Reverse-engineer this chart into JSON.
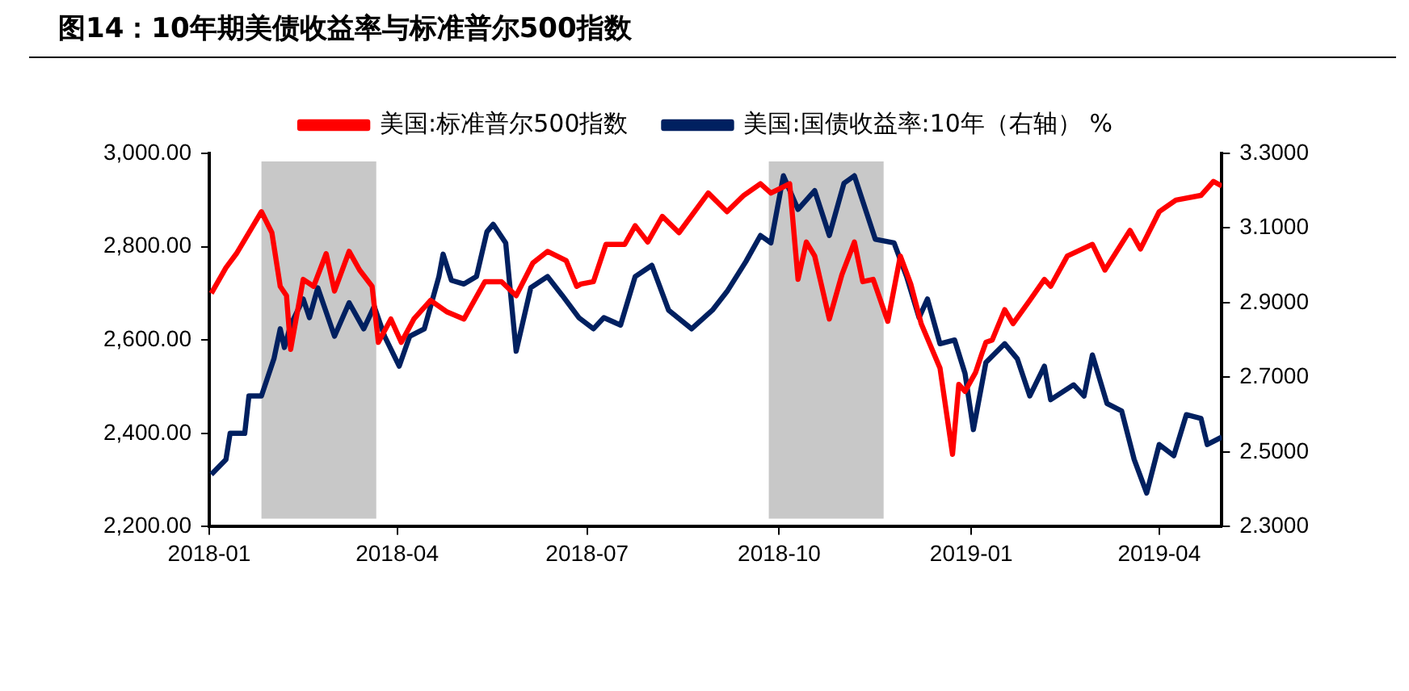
{
  "chart_data": {
    "type": "line",
    "title": "图14：10年期美债收益率与标准普尔500指数",
    "xlim": [
      "2018-01-01",
      "2019-05-01"
    ],
    "xticks": [
      "2018-01",
      "2018-04",
      "2018-07",
      "2018-10",
      "2019-01",
      "2019-04"
    ],
    "ylim": [
      2200,
      3000
    ],
    "yticks": [
      {
        "value": 2200,
        "label": "2,200.00"
      },
      {
        "value": 2400,
        "label": "2,400.00"
      },
      {
        "value": 2600,
        "label": "2,600.00"
      },
      {
        "value": 2800,
        "label": "2,800.00"
      },
      {
        "value": 3000,
        "label": "3,000.00"
      }
    ],
    "y2lim": [
      2.3,
      3.3
    ],
    "y2ticks": [
      {
        "value": 2.3,
        "label": "2.3000"
      },
      {
        "value": 2.5,
        "label": "2.5000"
      },
      {
        "value": 2.7,
        "label": "2.7000"
      },
      {
        "value": 2.9,
        "label": "2.9000"
      },
      {
        "value": 3.1,
        "label": "3.1000"
      },
      {
        "value": 3.3,
        "label": "3.3000"
      }
    ],
    "grid": false,
    "legend": "top",
    "marker": "none",
    "line_style": "solid",
    "bands": [
      {
        "axis": "x",
        "from": "2018-01-26",
        "to": "2018-03-22",
        "color": "#c8c8c8"
      },
      {
        "axis": "x",
        "from": "2018-09-26",
        "to": "2018-11-20",
        "color": "#c8c8c8"
      }
    ],
    "series": [
      {
        "name": "美国:标准普尔500指数",
        "color": "#ff0000",
        "x": [
          "2018-01-02",
          "2018-01-09",
          "2018-01-14",
          "2018-01-22",
          "2018-01-26",
          "2018-01-31",
          "2018-02-04",
          "2018-02-07",
          "2018-02-09",
          "2018-02-15",
          "2018-02-20",
          "2018-02-26",
          "2018-03-02",
          "2018-03-09",
          "2018-03-14",
          "2018-03-20",
          "2018-03-23",
          "2018-03-29",
          "2018-04-03",
          "2018-04-09",
          "2018-04-17",
          "2018-04-25",
          "2018-05-03",
          "2018-05-13",
          "2018-05-21",
          "2018-05-28",
          "2018-06-05",
          "2018-06-12",
          "2018-06-21",
          "2018-06-26",
          "2018-06-28",
          "2018-07-04",
          "2018-07-10",
          "2018-07-19",
          "2018-07-24",
          "2018-07-30",
          "2018-08-06",
          "2018-08-14",
          "2018-08-28",
          "2018-09-06",
          "2018-09-14",
          "2018-09-22",
          "2018-09-27",
          "2018-10-06",
          "2018-10-10",
          "2018-10-14",
          "2018-10-18",
          "2018-10-25",
          "2018-10-31",
          "2018-11-06",
          "2018-11-10",
          "2018-11-15",
          "2018-11-22",
          "2018-11-28",
          "2018-12-03",
          "2018-12-08",
          "2018-12-17",
          "2018-12-23",
          "2018-12-26",
          "2018-12-29",
          "2019-01-03",
          "2019-01-06",
          "2019-01-08",
          "2019-01-11",
          "2019-01-17",
          "2019-01-21",
          "2019-01-29",
          "2019-02-05",
          "2019-02-08",
          "2019-02-16",
          "2019-02-28",
          "2019-03-06",
          "2019-03-18",
          "2019-03-23",
          "2019-04-01",
          "2019-04-09",
          "2019-04-21",
          "2019-04-27",
          "2019-05-01"
        ],
        "values": [
          2700,
          2755,
          2785,
          2845,
          2875,
          2830,
          2715,
          2695,
          2580,
          2730,
          2715,
          2785,
          2705,
          2790,
          2750,
          2715,
          2595,
          2645,
          2595,
          2645,
          2685,
          2660,
          2645,
          2725,
          2725,
          2695,
          2765,
          2790,
          2770,
          2715,
          2720,
          2725,
          2805,
          2805,
          2845,
          2810,
          2865,
          2830,
          2915,
          2875,
          2910,
          2935,
          2915,
          2935,
          2730,
          2810,
          2780,
          2645,
          2740,
          2810,
          2725,
          2730,
          2640,
          2780,
          2720,
          2635,
          2540,
          2355,
          2505,
          2490,
          2530,
          2570,
          2595,
          2600,
          2665,
          2635,
          2685,
          2730,
          2715,
          2780,
          2805,
          2750,
          2835,
          2795,
          2875,
          2900,
          2910,
          2940,
          2930
        ]
      },
      {
        "name": "美国:国债收益率:10年（右轴） %",
        "color": "#002060",
        "axis": "y2",
        "x": [
          "2018-01-02",
          "2018-01-09",
          "2018-01-11",
          "2018-01-18",
          "2018-01-20",
          "2018-01-26",
          "2018-02-01",
          "2018-02-04",
          "2018-02-06",
          "2018-02-09",
          "2018-02-15",
          "2018-02-18",
          "2018-02-22",
          "2018-03-02",
          "2018-03-09",
          "2018-03-16",
          "2018-03-21",
          "2018-03-26",
          "2018-04-02",
          "2018-04-07",
          "2018-04-14",
          "2018-04-21",
          "2018-04-23",
          "2018-04-27",
          "2018-05-03",
          "2018-05-09",
          "2018-05-14",
          "2018-05-17",
          "2018-05-23",
          "2018-05-28",
          "2018-06-04",
          "2018-06-12",
          "2018-06-19",
          "2018-06-27",
          "2018-07-04",
          "2018-07-09",
          "2018-07-17",
          "2018-07-24",
          "2018-08-01",
          "2018-08-09",
          "2018-08-20",
          "2018-08-30",
          "2018-09-06",
          "2018-09-15",
          "2018-09-22",
          "2018-09-27",
          "2018-10-03",
          "2018-10-10",
          "2018-10-18",
          "2018-10-25",
          "2018-11-01",
          "2018-11-06",
          "2018-11-16",
          "2018-11-25",
          "2018-12-01",
          "2018-12-07",
          "2018-12-11",
          "2018-12-17",
          "2018-12-24",
          "2018-12-29",
          "2019-01-02",
          "2019-01-08",
          "2019-01-17",
          "2019-01-23",
          "2019-01-29",
          "2019-02-05",
          "2019-02-08",
          "2019-02-19",
          "2019-02-24",
          "2019-02-28",
          "2019-03-07",
          "2019-03-14",
          "2019-03-20",
          "2019-03-26",
          "2019-04-01",
          "2019-04-08",
          "2019-04-14",
          "2019-04-21",
          "2019-04-24",
          "2019-05-01"
        ],
        "values": [
          2.44,
          2.48,
          2.55,
          2.55,
          2.65,
          2.65,
          2.75,
          2.83,
          2.78,
          2.84,
          2.91,
          2.86,
          2.94,
          2.81,
          2.9,
          2.83,
          2.89,
          2.81,
          2.73,
          2.81,
          2.83,
          2.97,
          3.03,
          2.96,
          2.95,
          2.97,
          3.09,
          3.11,
          3.06,
          2.77,
          2.94,
          2.97,
          2.92,
          2.86,
          2.83,
          2.86,
          2.84,
          2.97,
          3.0,
          2.88,
          2.83,
          2.88,
          2.93,
          3.01,
          3.08,
          3.06,
          3.24,
          3.15,
          3.2,
          3.08,
          3.22,
          3.24,
          3.07,
          3.06,
          2.97,
          2.86,
          2.91,
          2.79,
          2.8,
          2.71,
          2.56,
          2.74,
          2.79,
          2.75,
          2.65,
          2.73,
          2.64,
          2.68,
          2.65,
          2.76,
          2.63,
          2.61,
          2.48,
          2.39,
          2.52,
          2.49,
          2.6,
          2.59,
          2.52,
          2.54
        ]
      }
    ]
  }
}
